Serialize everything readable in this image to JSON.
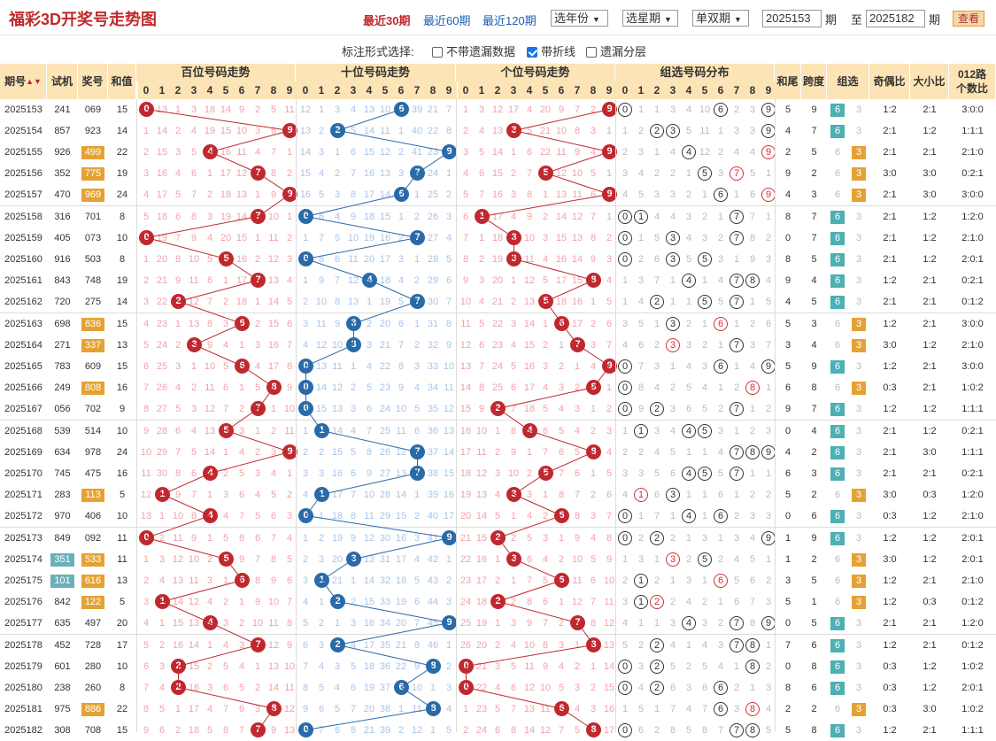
{
  "title": "福彩3D开奖号走势图",
  "periods": [
    "最近30期",
    "最近60期",
    "最近120期"
  ],
  "selects": {
    "year": "选年份",
    "term": "选星期",
    "parity": "单双期"
  },
  "range": {
    "from": "2025153",
    "qi1": "期",
    "to_label": "至",
    "to": "2025182",
    "qi2": "期"
  },
  "query": "查看",
  "options": {
    "label": "标注形式选择:",
    "opt1": "不带遗漏数据",
    "opt2": "带折线",
    "opt3": "遗漏分层",
    "opt1_checked": false,
    "opt2_checked": true,
    "opt3_checked": false
  },
  "headers": {
    "qihao": "期号",
    "shiji": "试机",
    "jianghao": "奖号",
    "hezhi": "和值",
    "bai": "百位号码走势",
    "shi": "十位号码走势",
    "ge": "个位号码走势",
    "zuxuan": "组选号码分布",
    "hewei": "和尾",
    "kuadu": "跨度",
    "zu": "组选",
    "jiou": "奇偶比",
    "daxiao": "大小比",
    "lu1": "012路",
    "lu2": "个数比",
    "digits": [
      "0",
      "1",
      "2",
      "3",
      "4",
      "5",
      "6",
      "7",
      "8",
      "9"
    ]
  },
  "colors": {
    "red": "#c0282f",
    "blue": "#2a6aa8",
    "header": "#fce4b6",
    "z6": "#4db0b5",
    "z3": "#e5a234"
  },
  "rows": [
    {
      "q": "2025153",
      "s": "241",
      "n": "069",
      "h": "15",
      "hw": "5",
      "kd": "9",
      "z": "6",
      "jo": "1:2",
      "dx": "2:1",
      "lu": "3:0:0",
      "sh": false,
      "nh": false,
      "bm": "0 13 1 3 18 14 9 2 5 11",
      "sm": "12 1 3 4 13 10 6 39 21 7",
      "gm": "1 3 12 17 4 20 9 7 2 9",
      "zm": "0 1 1 3 4 10 6 2 3 9"
    },
    {
      "q": "2025154",
      "s": "857",
      "n": "923",
      "h": "14",
      "hw": "4",
      "kd": "7",
      "z": "6",
      "jo": "2:1",
      "dx": "1:2",
      "lu": "1:1:1",
      "sh": false,
      "nh": false,
      "bm": "1 14 2 4 19 15 10 3 6 9",
      "sm": "13 2 2 5 14 11 1 40 22 8",
      "gm": "2 4 13 3 5 21 10 8 3 1",
      "zm": "1 2 2 3 5 11 1 3 3 9"
    },
    {
      "q": "2025155",
      "s": "926",
      "n": "499",
      "h": "22",
      "hw": "2",
      "kd": "5",
      "z": "3",
      "jo": "2:1",
      "dx": "2:1",
      "lu": "2:1:0",
      "sh": false,
      "nh": true,
      "bm": "2 15 3 5 4 16 11 4 7 1",
      "sm": "14 3 1 6 15 12 2 41 23 9",
      "gm": "3 5 14 1 6 22 11 9 4 9",
      "zm": "2 3 1 4 4 12 2 4 4 9"
    },
    {
      "q": "2025156",
      "s": "352",
      "n": "775",
      "h": "19",
      "hw": "9",
      "kd": "2",
      "z": "3",
      "jo": "3:0",
      "dx": "3:0",
      "lu": "0:2:1",
      "sh": false,
      "nh": true,
      "bm": "3 16 4 6 1 17 12 7 8 2",
      "sm": "15 4 2 7 16 13 3 7 24 1",
      "gm": "4 6 15 2 7 5 12 10 5 1",
      "zm": "3 4 2 2 1 5 3 7 5 1"
    },
    {
      "q": "2025157",
      "s": "470",
      "n": "969",
      "h": "24",
      "hw": "4",
      "kd": "3",
      "z": "3",
      "jo": "2:1",
      "dx": "3:0",
      "lu": "3:0:0",
      "sh": false,
      "nh": true,
      "bm": "4 17 5 7 2 18 13 1 9 9",
      "sm": "16 5 3 8 17 14 6 1 25 2",
      "gm": "5 7 16 3 8 1 13 11 6 9",
      "zm": "4 5 3 3 2 1 6 1 6 9"
    },
    {
      "q": "2025158",
      "s": "316",
      "n": "701",
      "h": "8",
      "hw": "8",
      "kd": "7",
      "z": "6",
      "jo": "2:1",
      "dx": "1:2",
      "lu": "1:2:0",
      "sh": false,
      "nh": false,
      "bm": "5 18 6 8 3 19 14 7 10 1",
      "sm": "0 6 4 9 18 15 1 2 26 3",
      "gm": "6 1 17 4 9 2 14 12 7 1",
      "zm": "0 1 4 4 3 2 1 7 7 1"
    },
    {
      "q": "2025159",
      "s": "405",
      "n": "073",
      "h": "10",
      "hw": "0",
      "kd": "7",
      "z": "6",
      "jo": "2:1",
      "dx": "1:2",
      "lu": "2:1:0",
      "sh": false,
      "nh": false,
      "bm": "0 19 7 9 4 20 15 1 11 2",
      "sm": "1 7 5 10 19 16 2 7 27 4",
      "gm": "7 1 18 3 10 3 15 13 8 2",
      "zm": "0 1 5 3 4 3 2 7 8 2"
    },
    {
      "q": "2025160",
      "s": "916",
      "n": "503",
      "h": "8",
      "hw": "8",
      "kd": "5",
      "z": "6",
      "jo": "2:1",
      "dx": "1:2",
      "lu": "2:0:1",
      "sh": false,
      "nh": false,
      "bm": "1 20 8 10 5 5 16 2 12 3",
      "sm": "0 8 6 11 20 17 3 1 28 5",
      "gm": "8 2 19 3 11 4 16 14 9 3",
      "zm": "0 2 6 3 5 5 3 1 9 3"
    },
    {
      "q": "2025161",
      "s": "843",
      "n": "748",
      "h": "19",
      "hw": "9",
      "kd": "4",
      "z": "6",
      "jo": "1:2",
      "dx": "2:1",
      "lu": "0:2:1",
      "sh": false,
      "nh": false,
      "bm": "2 21 9 11 6 1 17 7 13 4",
      "sm": "1 9 7 12 4 18 4 2 29 6",
      "gm": "9 3 20 1 12 5 17 15 8 4",
      "zm": "1 3 7 1 4 1 4 7 8 4"
    },
    {
      "q": "2025162",
      "s": "720",
      "n": "275",
      "h": "14",
      "hw": "4",
      "kd": "5",
      "z": "6",
      "jo": "2:1",
      "dx": "2:1",
      "lu": "0:1:2",
      "sh": false,
      "nh": false,
      "bm": "3 22 2 12 7 2 18 1 14 5",
      "sm": "2 10 8 13 1 19 5 7 30 7",
      "gm": "10 4 21 2 13 5 18 16 1 5",
      "zm": "1 4 2 1 1 5 5 7 1 5"
    },
    {
      "q": "2025163",
      "s": "698",
      "n": "636",
      "h": "15",
      "hw": "5",
      "kd": "3",
      "z": "3",
      "jo": "1:2",
      "dx": "2:1",
      "lu": "3:0:0",
      "sh": false,
      "nh": true,
      "bm": "4 23 1 13 8 3 6 2 15 6",
      "sm": "3 11 9 3 2 20 6 1 31 8",
      "gm": "11 5 22 3 14 1 6 17 2 6",
      "zm": "3 5 1 3 2 1 6 1 2 6"
    },
    {
      "q": "2025164",
      "s": "271",
      "n": "337",
      "h": "13",
      "hw": "3",
      "kd": "4",
      "z": "3",
      "jo": "3:0",
      "dx": "1:2",
      "lu": "2:1:0",
      "sh": false,
      "nh": true,
      "bm": "5 24 2 3 9 4 1 3 16 7",
      "sm": "4 12 10 3 3 21 7 2 32 9",
      "gm": "12 6 23 4 15 2 1 7 3 7",
      "zm": "4 6 2 3 3 2 1 7 3 7"
    },
    {
      "q": "2025165",
      "s": "783",
      "n": "609",
      "h": "15",
      "hw": "5",
      "kd": "9",
      "z": "6",
      "jo": "1:2",
      "dx": "2:1",
      "lu": "3:0:0",
      "sh": false,
      "nh": false,
      "bm": "6 25 3 1 10 5 6 4 17 8",
      "sm": "0 13 11 1 4 22 8 3 33 10",
      "gm": "13 7 24 5 16 3 2 1 4 9",
      "zm": "0 7 3 1 4 3 6 1 4 9"
    },
    {
      "q": "2025166",
      "s": "249",
      "n": "808",
      "h": "16",
      "hw": "6",
      "kd": "8",
      "z": "3",
      "jo": "0:3",
      "dx": "2:1",
      "lu": "1:0:2",
      "sh": false,
      "nh": true,
      "bm": "7 26 4 2 11 6 1 5 8 9",
      "sm": "0 14 12 2 5 23 9 4 34 11",
      "gm": "14 8 25 6 17 4 3 2 8 1",
      "zm": "0 8 4 2 5 4 1 2 8 1"
    },
    {
      "q": "2025167",
      "s": "056",
      "n": "702",
      "h": "9",
      "hw": "9",
      "kd": "7",
      "z": "6",
      "jo": "1:2",
      "dx": "1:2",
      "lu": "1:1:1",
      "sh": false,
      "nh": false,
      "bm": "8 27 5 3 12 7 2 7 1 10",
      "sm": "0 15 13 3 6 24 10 5 35 12",
      "gm": "15 9 2 7 18 5 4 3 1 2",
      "zm": "0 9 2 3 6 5 2 7 1 2"
    },
    {
      "q": "2025168",
      "s": "539",
      "n": "514",
      "h": "10",
      "hw": "0",
      "kd": "4",
      "z": "6",
      "jo": "2:1",
      "dx": "1:2",
      "lu": "0:2:1",
      "sh": false,
      "nh": false,
      "bm": "9 28 6 4 13 5 3 1 2 11",
      "sm": "1 1 14 4 7 25 11 6 36 13",
      "gm": "16 10 1 8 4 6 5 4 2 3",
      "zm": "1 1 3 4 4 5 3 1 2 3"
    },
    {
      "q": "2025169",
      "s": "634",
      "n": "978",
      "h": "24",
      "hw": "4",
      "kd": "2",
      "z": "6",
      "jo": "2:1",
      "dx": "3:0",
      "lu": "1:1:1",
      "sh": false,
      "nh": false,
      "bm": "10 29 7 5 14 1 4 2 3 9",
      "sm": "2 2 15 5 8 26 12 7 37 14",
      "gm": "17 11 2 9 1 7 6 5 8 4",
      "zm": "2 2 4 5 1 1 4 7 8 9"
    },
    {
      "q": "2025170",
      "s": "745",
      "n": "475",
      "h": "16",
      "hw": "6",
      "kd": "3",
      "z": "6",
      "jo": "2:1",
      "dx": "2:1",
      "lu": "0:2:1",
      "sh": false,
      "nh": false,
      "bm": "11 30 8 6 4 2 5 3 4 1",
      "sm": "3 3 16 6 9 27 13 7 38 15",
      "gm": "18 12 3 10 2 5 7 6 1 5",
      "zm": "3 3 5 6 4 5 5 7 1 1"
    },
    {
      "q": "2025171",
      "s": "283",
      "n": "113",
      "h": "5",
      "hw": "5",
      "kd": "2",
      "z": "3",
      "jo": "3:0",
      "dx": "0:3",
      "lu": "1:2:0",
      "sh": false,
      "nh": true,
      "bm": "12 1 9 7 1 3 6 4 5 2",
      "sm": "4 1 17 7 10 28 14 1 39 16",
      "gm": "19 13 4 3 3 1 8 7 2 6",
      "zm": "4 1 6 3 1 1 6 1 2 2"
    },
    {
      "q": "2025172",
      "s": "970",
      "n": "406",
      "h": "10",
      "hw": "0",
      "kd": "6",
      "z": "6",
      "jo": "0:3",
      "dx": "1:2",
      "lu": "2:1:0",
      "sh": false,
      "nh": false,
      "bm": "13 1 10 8 4 4 7 5 6 3",
      "sm": "0 1 18 8 11 29 15 2 40 17",
      "gm": "20 14 5 1 4 2 6 8 3 7",
      "zm": "0 1 7 1 4 1 6 2 3 3"
    },
    {
      "q": "2025173",
      "s": "849",
      "n": "092",
      "h": "11",
      "hw": "1",
      "kd": "9",
      "z": "6",
      "jo": "1:2",
      "dx": "1:2",
      "lu": "2:0:1",
      "sh": false,
      "nh": false,
      "bm": "0 2 11 9 1 5 8 6 7 4",
      "sm": "1 2 19 9 12 30 16 3 41 9",
      "gm": "21 15 2 2 5 3 1 9 4 8",
      "zm": "0 2 2 2 1 3 1 3 4 9"
    },
    {
      "q": "2025174",
      "s": "351",
      "n": "533",
      "h": "11",
      "hw": "1",
      "kd": "2",
      "z": "3",
      "jo": "3:0",
      "dx": "1:2",
      "lu": "2:0:1",
      "sh": true,
      "nh": true,
      "bm": "1 3 12 10 2 5 9 7 8 5",
      "sm": "2 3 20 3 13 31 17 4 42 1",
      "gm": "22 16 1 3 6 4 2 10 5 9",
      "zm": "1 3 1 3 2 5 2 4 5 1"
    },
    {
      "q": "2025175",
      "s": "101",
      "n": "616",
      "h": "13",
      "hw": "3",
      "kd": "5",
      "z": "3",
      "jo": "1:2",
      "dx": "2:1",
      "lu": "2:1:0",
      "sh": true,
      "nh": true,
      "bm": "2 4 13 11 3 1 6 8 9 6",
      "sm": "3 1 21 1 14 32 18 5 43 2",
      "gm": "23 17 2 1 7 5 6 11 6 10",
      "zm": "2 1 2 1 3 1 6 5 6 2"
    },
    {
      "q": "2025176",
      "s": "842",
      "n": "122",
      "h": "5",
      "hw": "5",
      "kd": "1",
      "z": "3",
      "jo": "1:2",
      "dx": "0:3",
      "lu": "0:1:2",
      "sh": false,
      "nh": true,
      "bm": "3 1 14 12 4 2 1 9 10 7",
      "sm": "4 1 2 2 15 33 19 6 44 3",
      "gm": "24 18 2 2 8 6 1 12 7 11",
      "zm": "3 1 2 2 4 2 1 6 7 3"
    },
    {
      "q": "2025177",
      "s": "635",
      "n": "497",
      "h": "20",
      "hw": "0",
      "kd": "5",
      "z": "6",
      "jo": "2:1",
      "dx": "2:1",
      "lu": "1:2:0",
      "sh": false,
      "nh": false,
      "bm": "4 1 15 13 4 3 2 10 11 8",
      "sm": "5 2 1 3 16 34 20 7 45 9",
      "gm": "25 19 1 3 9 7 2 7 8 12",
      "zm": "4 1 1 3 4 3 2 7 8 9"
    },
    {
      "q": "2025178",
      "s": "452",
      "n": "728",
      "h": "17",
      "hw": "7",
      "kd": "6",
      "z": "6",
      "jo": "1:2",
      "dx": "2:1",
      "lu": "0:1:2",
      "sh": false,
      "nh": false,
      "bm": "5 2 16 14 1 4 3 7 12 9",
      "sm": "6 3 2 4 17 35 21 8 46 1",
      "gm": "26 20 2 4 10 8 3 1 8 13",
      "zm": "5 2 2 4 1 4 3 7 8 1"
    },
    {
      "q": "2025179",
      "s": "601",
      "n": "280",
      "h": "10",
      "hw": "0",
      "kd": "8",
      "z": "6",
      "jo": "0:3",
      "dx": "1:2",
      "lu": "1:0:2",
      "sh": false,
      "nh": false,
      "bm": "6 3 2 15 2 5 4 1 13 10",
      "sm": "7 4 3 5 18 36 22 9 8 2",
      "gm": "0 21 3 5 11 9 4 2 1 14",
      "zm": "0 3 2 5 2 5 4 1 8 2"
    },
    {
      "q": "2025180",
      "s": "238",
      "n": "260",
      "h": "8",
      "hw": "8",
      "kd": "6",
      "z": "6",
      "jo": "0:3",
      "dx": "1:2",
      "lu": "2:0:1",
      "sh": false,
      "nh": false,
      "bm": "7 4 2 16 3 6 5 2 14 11",
      "sm": "8 5 4 6 19 37 6 10 1 3",
      "gm": "0 22 4 6 12 10 5 3 2 15",
      "zm": "0 4 2 6 3 6 6 2 1 3"
    },
    {
      "q": "2025181",
      "s": "975",
      "n": "886",
      "h": "22",
      "hw": "2",
      "kd": "2",
      "z": "3",
      "jo": "0:3",
      "dx": "3:0",
      "lu": "1:0:2",
      "sh": false,
      "nh": true,
      "bm": "8 5 1 17 4 7 6 3 8 12",
      "sm": "9 6 5 7 20 38 1 11 8 4",
      "gm": "1 23 5 7 13 11 6 4 3 16",
      "zm": "1 5 1 7 4 7 6 3 8 4"
    },
    {
      "q": "2025182",
      "s": "308",
      "n": "708",
      "h": "15",
      "hw": "5",
      "kd": "8",
      "z": "6",
      "jo": "1:2",
      "dx": "2:1",
      "lu": "1:1:1",
      "sh": false,
      "nh": false,
      "bm": "9 6 2 18 5 8 7 7 9 13",
      "sm": "0 7 6 8 21 39 2 12 1 5",
      "gm": "2 24 6 8 14 12 7 5 8 17",
      "zm": "0 6 2 8 5 8 7 7 8 5"
    }
  ]
}
